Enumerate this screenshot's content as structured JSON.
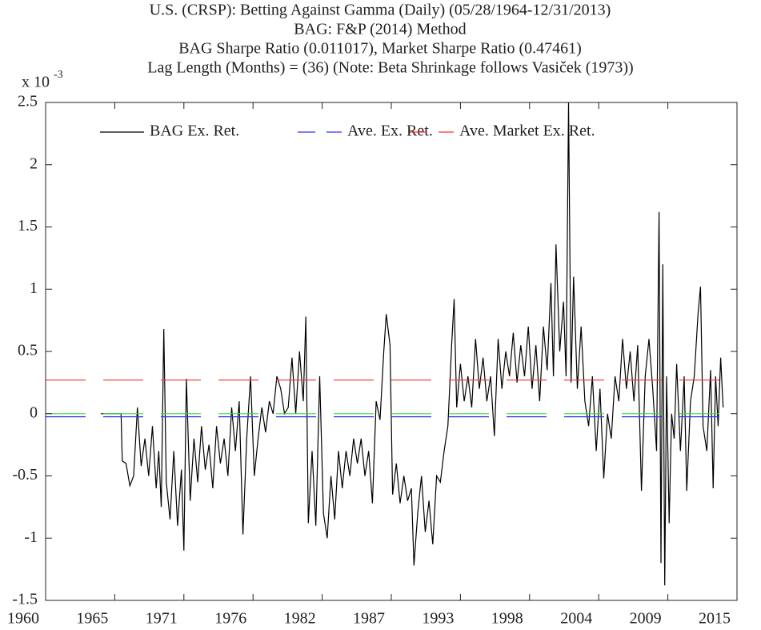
{
  "chart_data": {
    "type": "line",
    "title": [
      "U.S. (CRSP): Betting Against Gamma (Daily) (05/28/1964-12/31/2013)",
      "BAG: F&P (2014) Method",
      "BAG Sharpe Ratio (0.011017), Market Sharpe Ratio (0.47461)",
      "Lag Length (Months) = (36) (Note: Beta Shrinkage follows Vasiček (1973))"
    ],
    "y_multiplier": {
      "base": "x 10",
      "exponent": "-3"
    },
    "xlim": [
      1960,
      2015
    ],
    "xticks": [
      1960,
      {
        "value": 1965.5,
        "label": "1965"
      },
      1971,
      {
        "value": 1976.5,
        "label": "1976"
      },
      1982,
      {
        "value": 1987.5,
        "label": "1987"
      },
      1993,
      {
        "value": 1998.5,
        "label": "1998"
      },
      2004,
      {
        "value": 2009.5,
        "label": "2009"
      },
      2015
    ],
    "ylim": [
      -1.5,
      2.5
    ],
    "yticks": [
      -1.5,
      -1,
      -0.5,
      0,
      0.5,
      1,
      1.5,
      2,
      2.5
    ],
    "legend": "top",
    "series": [
      {
        "name": "BAG Ex. Ret.",
        "color": "#000000",
        "style": "solid",
        "x": [
          1964.4,
          1966.0,
          1966.1,
          1966.4,
          1966.7,
          1967.0,
          1967.3,
          1967.6,
          1967.9,
          1968.2,
          1968.5,
          1968.8,
          1969.0,
          1969.2,
          1969.4,
          1969.6,
          1969.9,
          1970.2,
          1970.5,
          1970.8,
          1971.0,
          1971.2,
          1971.5,
          1971.8,
          1972.1,
          1972.4,
          1972.7,
          1973.0,
          1973.3,
          1973.6,
          1973.9,
          1974.2,
          1974.5,
          1974.8,
          1975.1,
          1975.4,
          1975.7,
          1976.0,
          1976.3,
          1976.6,
          1976.9,
          1977.2,
          1977.5,
          1977.8,
          1978.1,
          1978.4,
          1978.7,
          1979.0,
          1979.3,
          1979.6,
          1979.9,
          1980.2,
          1980.5,
          1980.7,
          1980.9,
          1981.2,
          1981.5,
          1981.8,
          1982.1,
          1982.4,
          1982.7,
          1983.0,
          1983.3,
          1983.6,
          1983.9,
          1984.2,
          1984.5,
          1984.8,
          1985.1,
          1985.4,
          1985.7,
          1986.0,
          1986.3,
          1986.6,
          1986.9,
          1987.1,
          1987.4,
          1987.6,
          1987.9,
          1988.2,
          1988.5,
          1988.8,
          1989.1,
          1989.3,
          1989.6,
          1989.9,
          1990.2,
          1990.5,
          1990.8,
          1991.1,
          1991.4,
          1991.7,
          1992.0,
          1992.3,
          1992.5,
          1992.7,
          1993.0,
          1993.3,
          1993.6,
          1993.9,
          1994.2,
          1994.5,
          1994.8,
          1995.1,
          1995.4,
          1995.7,
          1996.0,
          1996.3,
          1996.6,
          1996.9,
          1997.2,
          1997.5,
          1997.8,
          1998.1,
          1998.4,
          1998.7,
          1999.0,
          1999.3,
          1999.6,
          1999.9,
          2000.2,
          2000.4,
          2000.6,
          2000.9,
          2001.2,
          2001.4,
          2001.6,
          2001.8,
          2002.0,
          2002.3,
          2002.6,
          2002.9,
          2003.2,
          2003.5,
          2003.8,
          2004.1,
          2004.4,
          2004.7,
          2005.0,
          2005.3,
          2005.6,
          2005.9,
          2006.2,
          2006.5,
          2006.8,
          2007.1,
          2007.4,
          2007.7,
          2008.0,
          2008.3,
          2008.6,
          2008.8,
          2008.95,
          2009.1,
          2009.25,
          2009.4,
          2009.6,
          2009.8,
          2010.0,
          2010.2,
          2010.5,
          2010.8,
          2011.0,
          2011.3,
          2011.6,
          2011.9,
          2012.1,
          2012.3,
          2012.6,
          2012.9,
          2013.1,
          2013.3,
          2013.5,
          2013.7,
          2013.9
        ],
        "values": [
          0,
          0,
          -0.38,
          -0.4,
          -0.58,
          -0.5,
          0.05,
          -0.42,
          -0.2,
          -0.5,
          -0.1,
          -0.6,
          -0.3,
          -0.75,
          0.68,
          -0.55,
          -0.85,
          -0.3,
          -0.9,
          -0.45,
          -1.1,
          0.28,
          -0.7,
          -0.2,
          -0.55,
          -0.1,
          -0.45,
          -0.25,
          -0.6,
          -0.1,
          -0.4,
          -0.2,
          -0.5,
          0.05,
          -0.3,
          0.1,
          -0.97,
          -0.2,
          0.3,
          -0.5,
          -0.2,
          0.05,
          -0.15,
          0.1,
          0,
          0.3,
          0.2,
          0,
          0.05,
          0.45,
          0,
          0.5,
          0.1,
          0.78,
          -0.88,
          -0.3,
          -0.9,
          0.3,
          -0.8,
          -1.0,
          -0.5,
          -0.85,
          -0.3,
          -0.6,
          -0.3,
          -0.5,
          -0.2,
          -0.4,
          -0.2,
          -0.5,
          -0.3,
          -0.72,
          0.1,
          -0.05,
          0.5,
          0.8,
          0.55,
          -0.65,
          -0.4,
          -0.72,
          -0.5,
          -0.7,
          -0.6,
          -1.22,
          -0.8,
          -0.5,
          -0.95,
          -0.7,
          -1.05,
          -0.5,
          -0.55,
          -0.3,
          -0.1,
          0.55,
          0.92,
          0.05,
          0.4,
          0.1,
          0.3,
          0.05,
          0.6,
          0.2,
          0.45,
          0.1,
          0.3,
          -0.18,
          0.6,
          0.2,
          0.5,
          0.3,
          0.65,
          0.25,
          0.55,
          0.3,
          0.7,
          0.2,
          0.55,
          0.1,
          0.7,
          0.35,
          1.05,
          0.3,
          1.36,
          0.5,
          0.9,
          0.3,
          2.5,
          0.25,
          1.1,
          0.2,
          0.7,
          0.1,
          -0.1,
          0.3,
          -0.3,
          0.2,
          -0.52,
          0,
          -0.2,
          0.3,
          0.1,
          0.6,
          0.2,
          0.5,
          0.1,
          0.55,
          -0.62,
          0.3,
          0.6,
          0.2,
          -0.3,
          1.62,
          -1.2,
          1.2,
          -1.38,
          0.3,
          -0.88,
          0,
          -0.2,
          0.4,
          -0.3,
          0.3,
          -0.62,
          0.1,
          0.3,
          0.8,
          1.02,
          -0.1,
          -0.3,
          0.35,
          -0.6,
          0.3,
          -0.1,
          0.45,
          0.05
        ]
      },
      {
        "name": "Ave. Ex. Ret.",
        "color": "#3333ff",
        "style": "dashed",
        "x": [
          1960,
          2015
        ],
        "values": [
          -0.025,
          -0.025
        ]
      },
      {
        "name": "Ave. Market Ex. Ret.",
        "color": "#ff3333",
        "style": "dashed",
        "x": [
          1960,
          2015
        ],
        "values": [
          0.27,
          0.27
        ]
      },
      {
        "color": "#33dd33",
        "style": "dashed",
        "x": [
          1960,
          2015
        ],
        "values": [
          0,
          0
        ]
      }
    ]
  }
}
